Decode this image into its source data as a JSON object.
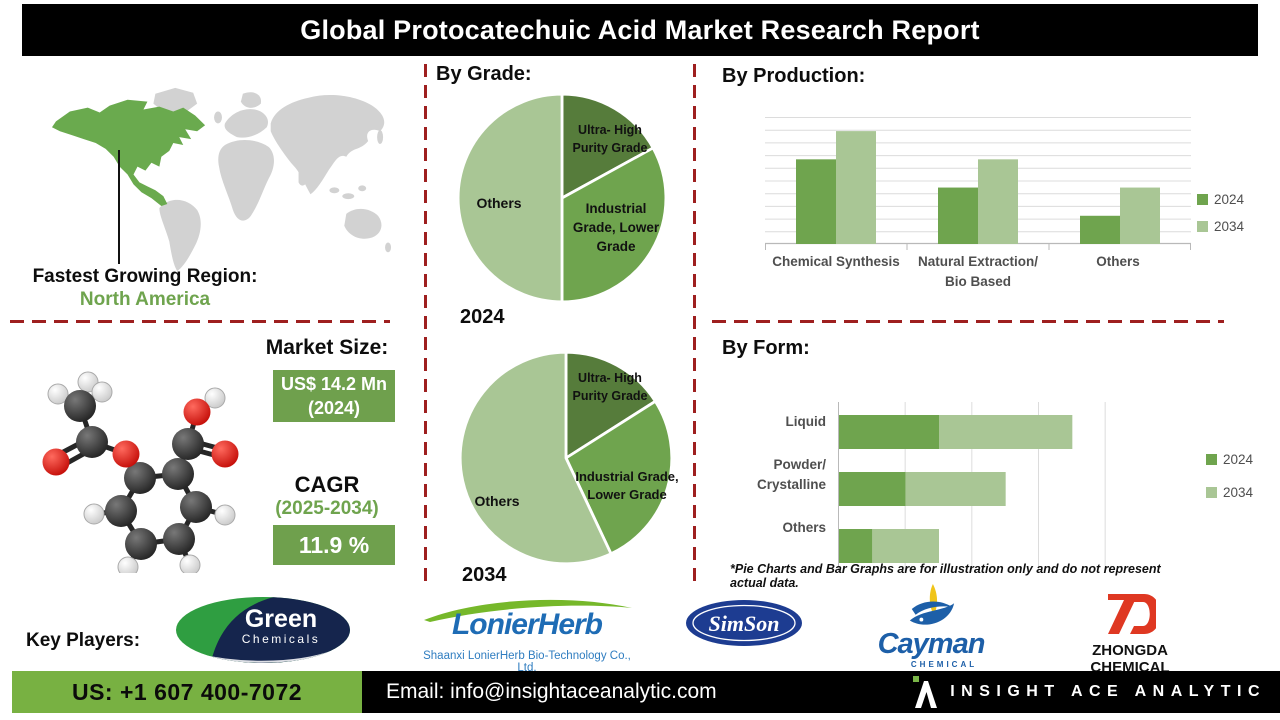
{
  "header": {
    "title": "Global Protocatechuic Acid Market Research Report"
  },
  "region": {
    "label": "Fastest Growing Region:",
    "value": "North America"
  },
  "market": {
    "size_label": "Market Size:",
    "size_value": "US$ 14.2 Mn",
    "size_year": "(2024)",
    "cagr_label": "CAGR",
    "cagr_period": "(2025-2034)",
    "cagr_value": "11.9 %"
  },
  "chart_data": [
    {
      "id": "by_grade_2024",
      "type": "pie",
      "title": "By Grade:",
      "year_label": "2024",
      "labels": [
        "Ultra- High Purity Grade",
        "Industrial Grade, Lower Grade",
        "Others"
      ],
      "values": [
        17,
        33,
        50
      ],
      "colors": [
        "#567c3b",
        "#6fa44e",
        "#a9c695"
      ]
    },
    {
      "id": "by_grade_2034",
      "type": "pie",
      "year_label": "2034",
      "labels": [
        "Ultra- High Purity Grade",
        "Industrial Grade, Lower Grade",
        "Others"
      ],
      "values": [
        16,
        27,
        57
      ],
      "colors": [
        "#567c3b",
        "#6fa44e",
        "#a9c695"
      ]
    },
    {
      "id": "by_production",
      "type": "bar",
      "title": "By Production:",
      "categories": [
        "Chemical Synthesis",
        "Natural Extraction/\nBio Based",
        "Others"
      ],
      "series": [
        {
          "name": "2024",
          "color": "#6fa44e",
          "values": [
            3,
            2,
            1
          ]
        },
        {
          "name": "2034",
          "color": "#a9c695",
          "values": [
            4,
            3,
            2
          ]
        }
      ],
      "ylim": [
        0,
        4.5
      ],
      "gridlines": true,
      "legend_position": "right"
    },
    {
      "id": "by_form",
      "type": "bar",
      "orientation": "horizontal",
      "stacked": true,
      "title": "By Form:",
      "categories": [
        "Liquid",
        "Powder/\nCrystalline",
        "Others"
      ],
      "series": [
        {
          "name": "2024",
          "color": "#6fa44e",
          "values": [
            1.5,
            1,
            0.5
          ]
        },
        {
          "name": "2034",
          "color": "#a9c695",
          "values": [
            2,
            1.5,
            1
          ]
        }
      ],
      "xlim": [
        0,
        4.5
      ],
      "gridlines": true,
      "legend_position": "right"
    }
  ],
  "footnote": "*Pie Charts and Bar Graphs are for illustration only and do not represent actual data.",
  "key_players": {
    "label": "Key Players:",
    "green_chemicals": {
      "line1": "Green",
      "line2": "Chemicals"
    },
    "lonierherb": {
      "name": "LonierHerb",
      "subtitle": "Shaanxi LonierHerb Bio-Technology Co., Ltd."
    },
    "simson": {
      "name": "SimSon"
    },
    "cayman": {
      "name": "Cayman",
      "subtitle": "CHEMICAL"
    },
    "zhongda": {
      "name": "ZHONGDA CHEMICAL"
    }
  },
  "footer": {
    "phone": "US: +1 607 400-7072",
    "email": "Email: info@insightaceanalytic.com",
    "brand": "INSIGHT ACE ANALYTIC"
  },
  "colors": {
    "accent_green": "#6fa44e",
    "light_green": "#a9c695",
    "dark_green": "#567c3b",
    "badge_green": "#6fa04d",
    "footer_green": "#78b142",
    "dashed_red": "#9e1f1f",
    "logo_blue": "#1e6cb5",
    "logo_navy": "#15254d",
    "logo_red": "#df3822"
  }
}
